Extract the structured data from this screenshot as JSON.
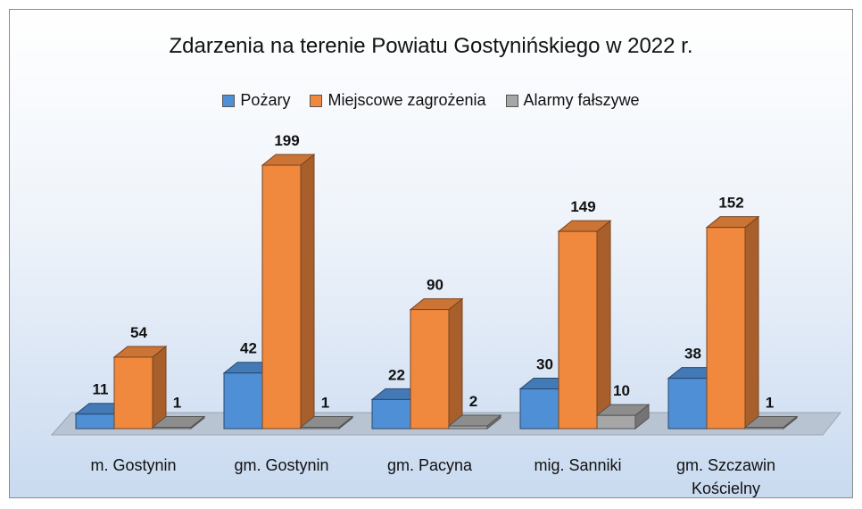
{
  "chart_data": {
    "type": "bar3d",
    "title": "Zdarzenia na terenie Powiatu Gostynińskiego w 2022 r.",
    "categories": [
      "m. Gostynin",
      "gm. Gostynin",
      "gm. Pacyna",
      "mig. Sanniki",
      "gm. Szczawin Kościelny"
    ],
    "series": [
      {
        "name": "Pożary",
        "color": "#4f8fd6",
        "values": [
          11,
          42,
          22,
          30,
          38
        ]
      },
      {
        "name": "Miejscowe zagrożenia",
        "color": "#f0883e",
        "values": [
          54,
          199,
          90,
          149,
          152
        ]
      },
      {
        "name": "Alarmy fałszywe",
        "color": "#a6a6a6",
        "values": [
          1,
          1,
          2,
          10,
          1
        ]
      }
    ],
    "legend": "top"
  }
}
